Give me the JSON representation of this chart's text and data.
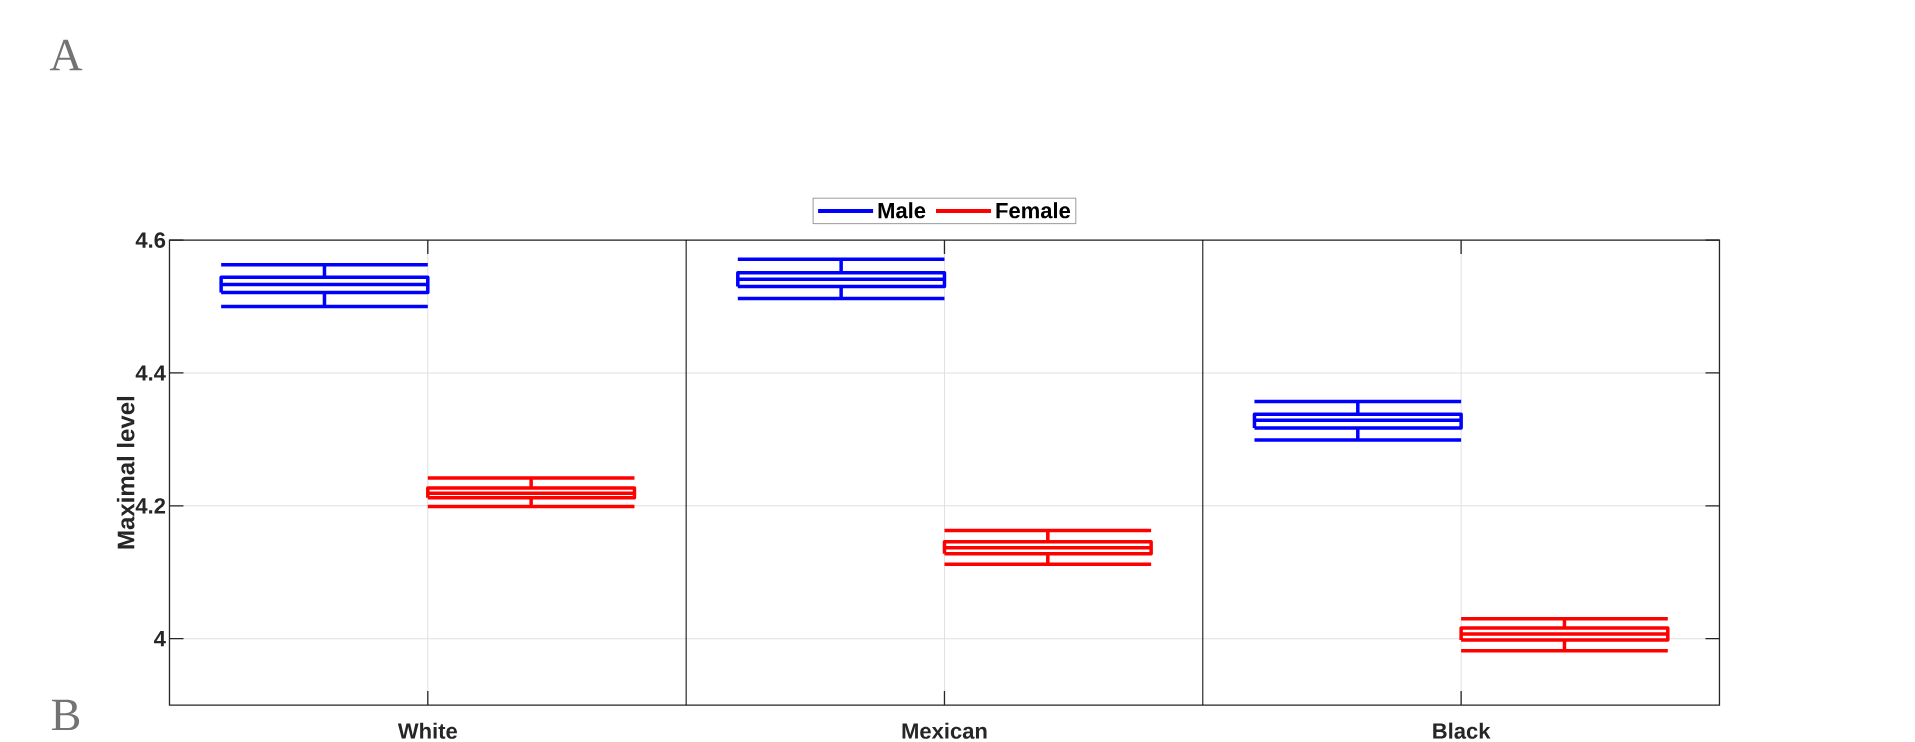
{
  "chart_data": {
    "type": "box",
    "ylabel": "Maximal level",
    "categories": [
      "White",
      "Mexican",
      "Black"
    ],
    "ylim": [
      3.9,
      4.6
    ],
    "yticks": [
      4,
      4.2,
      4.4,
      4.6
    ],
    "grid": true,
    "legend": "top",
    "annotations": [
      "A",
      "B"
    ],
    "series": [
      {
        "name": "Male",
        "color": "#0000ff",
        "boxes": [
          {
            "low": 4.5,
            "q1": 4.521,
            "median": 4.533,
            "q3": 4.544,
            "high": 4.563
          },
          {
            "low": 4.512,
            "q1": 4.53,
            "median": 4.541,
            "q3": 4.551,
            "high": 4.571
          },
          {
            "low": 4.299,
            "q1": 4.317,
            "median": 4.329,
            "q3": 4.338,
            "high": 4.357
          }
        ]
      },
      {
        "name": "Female",
        "color": "#ff0000",
        "boxes": [
          {
            "low": 4.199,
            "q1": 4.212,
            "median": 4.219,
            "q3": 4.227,
            "high": 4.242
          },
          {
            "low": 4.112,
            "q1": 4.128,
            "median": 4.137,
            "q3": 4.146,
            "high": 4.163
          },
          {
            "low": 3.982,
            "q1": 3.998,
            "median": 4.007,
            "q3": 4.016,
            "high": 4.03
          }
        ]
      }
    ]
  }
}
